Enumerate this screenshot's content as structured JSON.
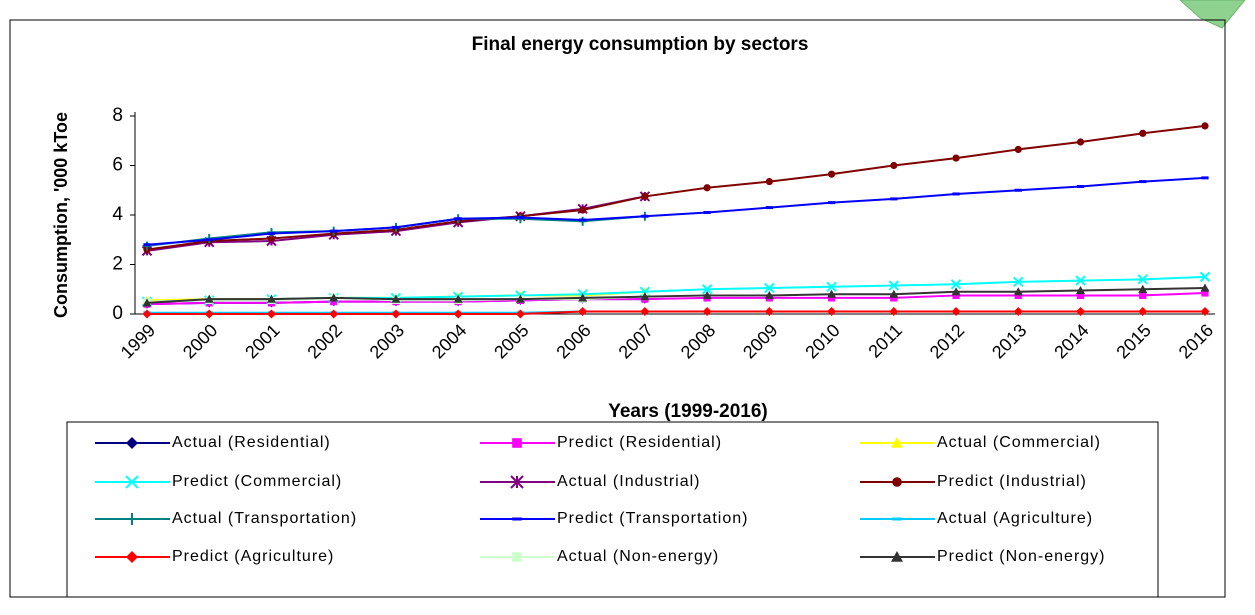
{
  "chart_data": {
    "type": "line",
    "title": "Final energy consumption by sectors",
    "x_label": "Years (1999-2016)",
    "y_label": "Consumption, '000 kToe",
    "categories": [
      "1999",
      "2000",
      "2001",
      "2002",
      "2003",
      "2004",
      "2005",
      "2006",
      "2007",
      "2008",
      "2009",
      "2010",
      "2011",
      "2012",
      "2013",
      "2014",
      "2015",
      "2016"
    ],
    "ylim": [
      0,
      8
    ],
    "yticks": [
      0,
      2,
      4,
      6,
      8
    ],
    "series": [
      {
        "name": "Actual (Residential)",
        "color": "#000080",
        "marker": "diamond",
        "values": [
          0.4,
          0.45,
          0.45,
          0.5,
          0.5,
          0.5,
          0.55,
          0.6,
          0.6,
          null,
          null,
          null,
          null,
          null,
          null,
          null,
          null,
          null
        ]
      },
      {
        "name": "Predict (Residential)",
        "color": "#ff00ff",
        "marker": "square",
        "values": [
          0.4,
          0.45,
          0.45,
          0.5,
          0.5,
          0.5,
          0.55,
          0.6,
          0.6,
          0.65,
          0.65,
          0.65,
          0.65,
          0.75,
          0.75,
          0.75,
          0.75,
          0.85
        ]
      },
      {
        "name": "Actual (Commercial)",
        "color": "#ffff00",
        "marker": "triangle",
        "values": [
          0.55,
          0.6,
          0.6,
          0.65,
          0.65,
          0.7,
          0.75,
          0.75,
          0.9,
          null,
          null,
          null,
          null,
          null,
          null,
          null,
          null,
          null
        ]
      },
      {
        "name": "Predict (Commercial)",
        "color": "#00ffff",
        "marker": "x",
        "values": [
          0.5,
          0.55,
          0.6,
          0.65,
          0.65,
          0.7,
          0.75,
          0.8,
          0.9,
          1.0,
          1.05,
          1.1,
          1.15,
          1.2,
          1.3,
          1.35,
          1.4,
          1.5
        ]
      },
      {
        "name": "Actual (Industrial)",
        "color": "#800080",
        "marker": "asterisk",
        "values": [
          2.55,
          2.9,
          2.95,
          3.2,
          3.35,
          3.7,
          3.95,
          4.25,
          4.75,
          null,
          null,
          null,
          null,
          null,
          null,
          null,
          null,
          null
        ]
      },
      {
        "name": "Predict (Industrial)",
        "color": "#800000",
        "marker": "circle",
        "values": [
          2.6,
          2.95,
          3.05,
          3.25,
          3.4,
          3.75,
          3.95,
          4.2,
          4.75,
          5.1,
          5.35,
          5.65,
          6.0,
          6.3,
          6.65,
          6.95,
          7.3,
          7.6
        ]
      },
      {
        "name": "Actual (Transportation)",
        "color": "#008080",
        "marker": "plus",
        "values": [
          2.75,
          3.05,
          3.3,
          3.35,
          3.5,
          3.85,
          3.85,
          3.75,
          3.95,
          null,
          null,
          null,
          null,
          null,
          null,
          null,
          null,
          null
        ]
      },
      {
        "name": "Predict (Transportation)",
        "color": "#0000ff",
        "marker": "dash",
        "values": [
          2.8,
          3.0,
          3.25,
          3.35,
          3.5,
          3.85,
          3.9,
          3.8,
          3.95,
          4.1,
          4.3,
          4.5,
          4.65,
          4.85,
          5.0,
          5.15,
          5.35,
          5.5
        ]
      },
      {
        "name": "Actual (Agriculture)",
        "color": "#00ccff",
        "marker": "dash",
        "values": [
          0.05,
          0.05,
          0.05,
          0.05,
          0.05,
          0.05,
          0.05,
          0.1,
          0.1,
          null,
          null,
          null,
          null,
          null,
          null,
          null,
          null,
          null
        ]
      },
      {
        "name": "Predict (Agriculture)",
        "color": "#ff0000",
        "marker": "diamond",
        "values": [
          0,
          0,
          0,
          0,
          0,
          0,
          0,
          0.1,
          0.1,
          0.1,
          0.1,
          0.1,
          0.1,
          0.1,
          0.1,
          0.1,
          0.1,
          0.1
        ]
      },
      {
        "name": "Actual (Non-energy)",
        "color": "#ccffcc",
        "marker": "square",
        "values": [
          0.5,
          0.55,
          0.55,
          0.65,
          0.55,
          0.55,
          0.6,
          0.6,
          0.7,
          null,
          null,
          null,
          null,
          null,
          null,
          null,
          null,
          null
        ]
      },
      {
        "name": "Predict (Non-energy)",
        "color": "#333333",
        "marker": "triangle",
        "values": [
          0.45,
          0.6,
          0.6,
          0.65,
          0.6,
          0.6,
          0.6,
          0.65,
          0.7,
          0.75,
          0.75,
          0.8,
          0.8,
          0.9,
          0.9,
          0.95,
          1.0,
          1.05
        ]
      }
    ]
  }
}
